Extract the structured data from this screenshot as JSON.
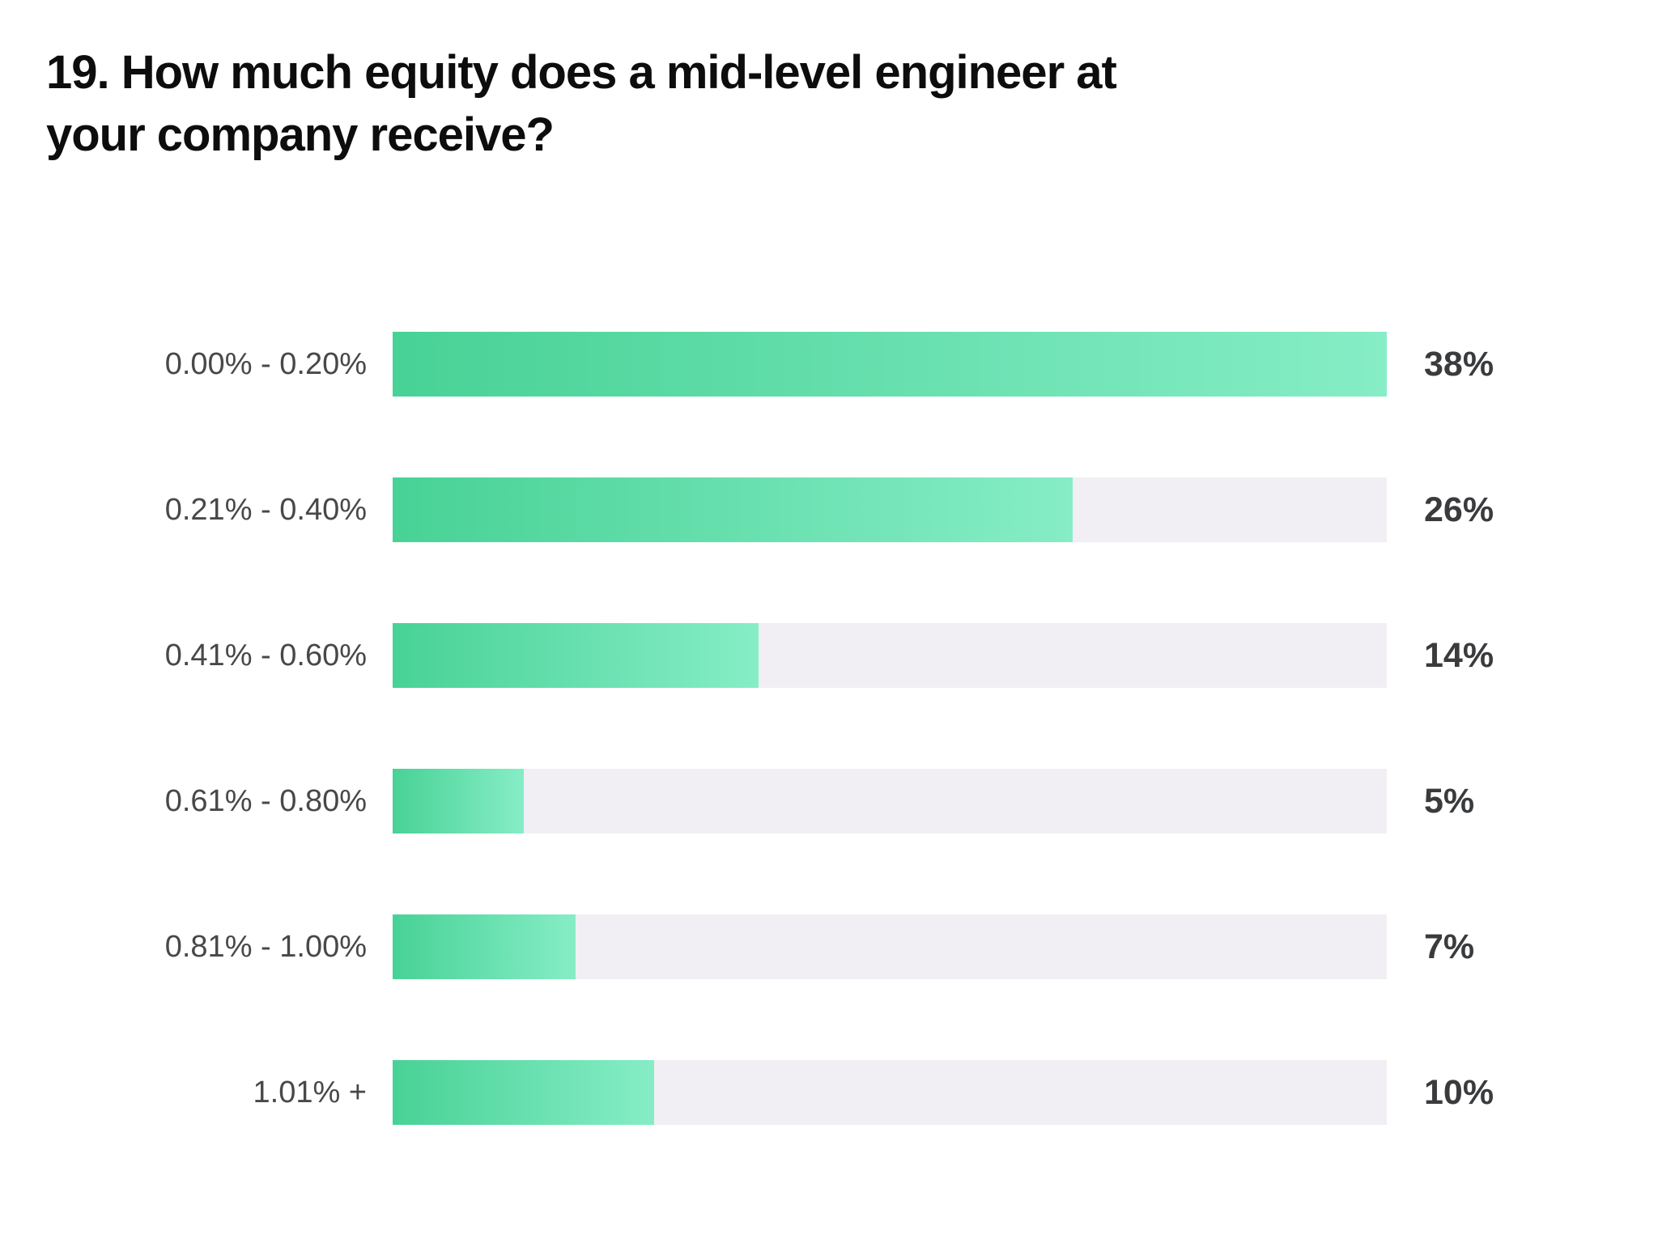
{
  "title_lines": [
    "19. How much equity does a mid-level engineer at",
    "your company receive?"
  ],
  "chart_data": {
    "type": "bar",
    "orientation": "horizontal",
    "title": "19. How much equity does a mid-level engineer at your company receive?",
    "xlabel": "",
    "ylabel": "",
    "categories": [
      "0.00% - 0.20%",
      "0.21% - 0.40%",
      "0.41% - 0.60%",
      "0.61% - 0.80%",
      "0.81% - 1.00%",
      "1.01% +"
    ],
    "values": [
      38,
      26,
      14,
      5,
      7,
      10
    ],
    "value_labels": [
      "38%",
      "26%",
      "14%",
      "5%",
      "7%",
      "10%"
    ],
    "bar_scale_max": 38,
    "xlim": [
      0,
      38
    ],
    "grid": false,
    "legend": false,
    "colors": {
      "bar_gradient_start": "#48d296",
      "bar_gradient_end": "#86edc6",
      "track": "#f1eff3",
      "label_text": "#47484a",
      "value_text": "#3a3b3d",
      "title_text": "#0d0d0d",
      "background": "#ffffff"
    }
  }
}
